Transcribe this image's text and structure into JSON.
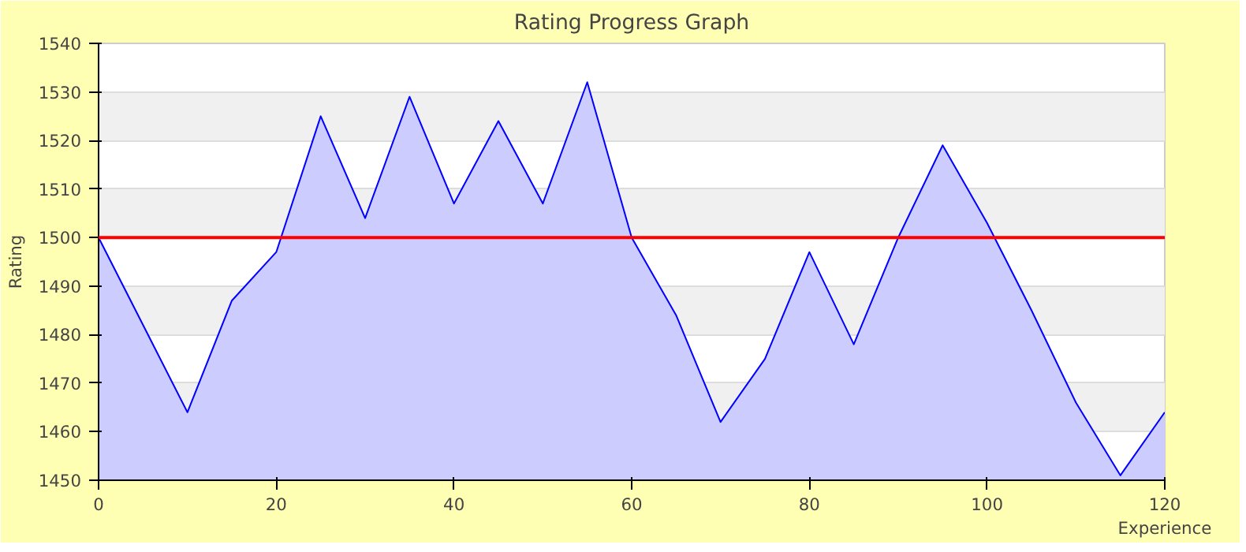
{
  "chart_data": {
    "type": "area",
    "title": "Rating Progress Graph",
    "xlabel": "Experience",
    "ylabel": "Rating",
    "x": [
      0,
      5,
      10,
      15,
      20,
      25,
      30,
      35,
      40,
      45,
      50,
      55,
      60,
      65,
      70,
      75,
      80,
      85,
      90,
      95,
      100,
      105,
      110,
      115,
      120
    ],
    "series": [
      {
        "color": "#0000ff",
        "values": [
          1500,
          1482,
          1464,
          1487,
          1497,
          1525,
          1504,
          1529,
          1507,
          1524,
          1507,
          1532,
          1500,
          1484,
          1462,
          1475,
          1497,
          1478,
          1500,
          1519,
          1503,
          1485,
          1466,
          1451,
          1464
        ]
      }
    ],
    "xlim": [
      0,
      120
    ],
    "ylim": [
      1450,
      1540
    ],
    "xticks": [
      0,
      20,
      40,
      60,
      80,
      100,
      120
    ],
    "yticks": [
      1450,
      1460,
      1470,
      1480,
      1490,
      1500,
      1510,
      1520,
      1530,
      1540
    ],
    "ref_lines": [
      {
        "axis": "y",
        "value": 1500,
        "color": "#ff0000"
      }
    ],
    "grid": "y"
  }
}
